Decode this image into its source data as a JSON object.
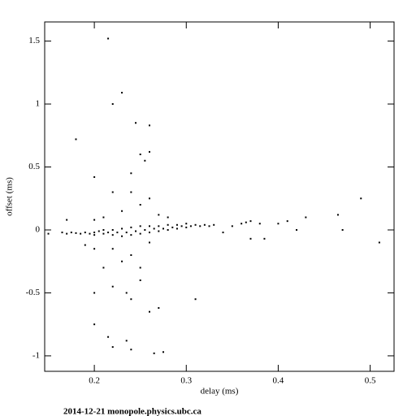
{
  "chart_data": {
    "type": "scatter",
    "x_label": "delay (ms)",
    "y_label": "offset (ms)",
    "footer": "2014-12-21 monopole.physics.ubc.ca",
    "color": "#000000",
    "xlim": [
      0.146,
      0.526
    ],
    "xticks": [
      0.2,
      0.3,
      0.4,
      0.5
    ],
    "ylim": [
      -1.123,
      1.652
    ],
    "yticks": [
      -1,
      -0.5,
      0,
      0.5,
      1,
      1.5
    ],
    "x": [
      0.165,
      0.17,
      0.175,
      0.18,
      0.185,
      0.19,
      0.195,
      0.2,
      0.2,
      0.205,
      0.21,
      0.21,
      0.215,
      0.22,
      0.22,
      0.225,
      0.23,
      0.23,
      0.235,
      0.24,
      0.24,
      0.245,
      0.25,
      0.25,
      0.255,
      0.26,
      0.26,
      0.265,
      0.27,
      0.27,
      0.275,
      0.28,
      0.28,
      0.285,
      0.29,
      0.29,
      0.295,
      0.3,
      0.3,
      0.305,
      0.31,
      0.315,
      0.32,
      0.325,
      0.33,
      0.23,
      0.21,
      0.25,
      0.22,
      0.24,
      0.26,
      0.2,
      0.27,
      0.24,
      0.26,
      0.22,
      0.25,
      0.23,
      0.19,
      0.28,
      0.21,
      0.255,
      0.25,
      0.26,
      0.24,
      0.18,
      0.22,
      0.23,
      0.245,
      0.26,
      0.215,
      0.2,
      0.22,
      0.235,
      0.24,
      0.26,
      0.27,
      0.31,
      0.2,
      0.215,
      0.235,
      0.24,
      0.22,
      0.275,
      0.265,
      0.25,
      0.2,
      0.35,
      0.365,
      0.37,
      0.38,
      0.36,
      0.34,
      0.37,
      0.385,
      0.4,
      0.41,
      0.42,
      0.43,
      0.465,
      0.47,
      0.49,
      0.51,
      0.15,
      0.17,
      0.2
    ],
    "values": [
      -0.02,
      -0.03,
      -0.02,
      -0.025,
      -0.03,
      -0.02,
      -0.03,
      -0.02,
      -0.04,
      -0.01,
      -0.03,
      0,
      -0.02,
      -0.04,
      0,
      -0.02,
      -0.05,
      0.01,
      -0.02,
      -0.04,
      0.02,
      -0.01,
      -0.03,
      0.03,
      0,
      -0.02,
      0.03,
      0.01,
      -0.01,
      0.03,
      0.01,
      0,
      0.04,
      0.02,
      0.01,
      0.04,
      0.03,
      0.02,
      0.05,
      0.03,
      0.04,
      0.03,
      0.04,
      0.03,
      0.04,
      0.15,
      0.1,
      0.2,
      -0.15,
      -0.2,
      -0.1,
      0.08,
      0.12,
      0.3,
      0.25,
      0.3,
      -0.3,
      -0.25,
      -0.12,
      0.1,
      -0.3,
      0.55,
      0.6,
      0.62,
      0.45,
      0.72,
      1.0,
      1.09,
      0.85,
      0.83,
      1.52,
      0.42,
      -0.45,
      -0.5,
      -0.55,
      -0.65,
      -0.62,
      -0.55,
      -0.75,
      -0.85,
      -0.88,
      -0.95,
      -0.93,
      -0.97,
      -0.98,
      -0.4,
      -0.5,
      0.03,
      0.06,
      0.07,
      0.05,
      0.05,
      -0.02,
      -0.07,
      -0.07,
      0.05,
      0.07,
      0,
      0.1,
      0.12,
      0,
      0.25,
      -0.1,
      -0.03,
      0.08,
      -0.15
    ]
  }
}
